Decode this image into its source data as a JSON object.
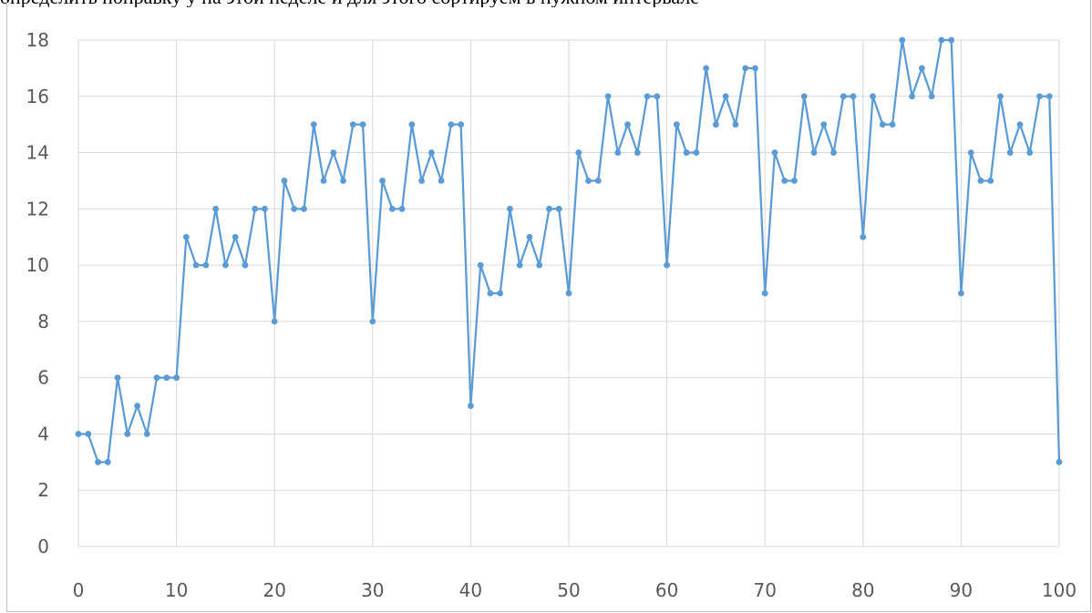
{
  "header": {
    "top_text": "определить поправку у на этой неделе и для этого сортируем в нужном интервале"
  },
  "colors": {
    "series": "#5b9bd5",
    "grid": "#d9d9d9",
    "axis_text": "#595959"
  },
  "chart_data": {
    "type": "line",
    "title": "",
    "xlabel": "",
    "ylabel": "",
    "xlim": [
      0,
      100
    ],
    "ylim": [
      0,
      18
    ],
    "x_ticks": [
      0,
      10,
      20,
      30,
      40,
      50,
      60,
      70,
      80,
      90,
      100
    ],
    "y_ticks": [
      0,
      2,
      4,
      6,
      8,
      10,
      12,
      14,
      16,
      18
    ],
    "grid": true,
    "markers": true,
    "series": [
      {
        "name": "",
        "x": [
          0,
          1,
          2,
          3,
          4,
          5,
          6,
          7,
          8,
          9,
          10,
          11,
          12,
          13,
          14,
          15,
          16,
          17,
          18,
          19,
          20,
          21,
          22,
          23,
          24,
          25,
          26,
          27,
          28,
          29,
          30,
          31,
          32,
          33,
          34,
          35,
          36,
          37,
          38,
          39,
          40,
          41,
          42,
          43,
          44,
          45,
          46,
          47,
          48,
          49,
          50,
          51,
          52,
          53,
          54,
          55,
          56,
          57,
          58,
          59,
          60,
          61,
          62,
          63,
          64,
          65,
          66,
          67,
          68,
          69,
          70,
          71,
          72,
          73,
          74,
          75,
          76,
          77,
          78,
          79,
          80,
          81,
          82,
          83,
          84,
          85,
          86,
          87,
          88,
          89,
          90,
          91,
          92,
          93,
          94,
          95,
          96,
          97,
          98,
          99,
          100
        ],
        "y": [
          4,
          4,
          3,
          3,
          6,
          4,
          5,
          4,
          6,
          6,
          6,
          11,
          10,
          10,
          12,
          10,
          11,
          10,
          12,
          12,
          8,
          13,
          12,
          12,
          15,
          13,
          14,
          13,
          15,
          15,
          8,
          13,
          12,
          12,
          15,
          13,
          14,
          13,
          15,
          15,
          5,
          10,
          9,
          9,
          12,
          10,
          11,
          10,
          12,
          12,
          9,
          14,
          13,
          13,
          16,
          14,
          15,
          14,
          16,
          16,
          10,
          15,
          14,
          14,
          17,
          15,
          16,
          15,
          17,
          17,
          9,
          14,
          13,
          13,
          16,
          14,
          15,
          14,
          16,
          16,
          11,
          16,
          15,
          15,
          18,
          16,
          17,
          16,
          18,
          18,
          9,
          14,
          13,
          13,
          16,
          14,
          15,
          14,
          16,
          16,
          3
        ]
      }
    ]
  }
}
